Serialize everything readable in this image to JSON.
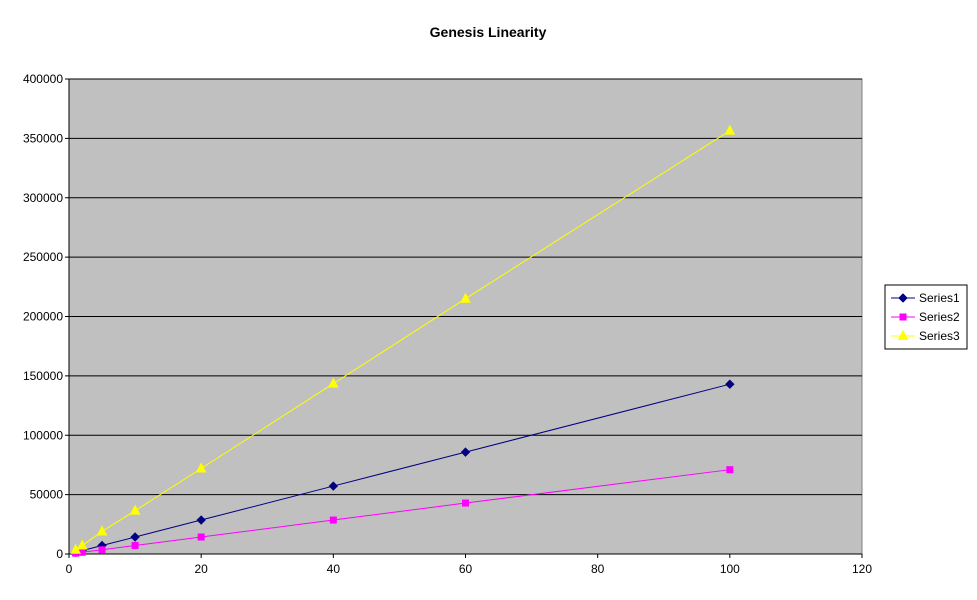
{
  "chart_data": {
    "type": "line",
    "title": "Genesis Linearity",
    "xlabel": "",
    "ylabel": "",
    "xlim": [
      0,
      120
    ],
    "ylim": [
      0,
      400000
    ],
    "x_ticks": [
      0,
      20,
      40,
      60,
      80,
      100,
      120
    ],
    "y_ticks": [
      0,
      50000,
      100000,
      150000,
      200000,
      250000,
      300000,
      350000,
      400000
    ],
    "grid": "horizontal",
    "legend": "right",
    "plot_background": "#c0c0c0",
    "series": [
      {
        "name": "Series1",
        "color": "#000080",
        "marker": "diamond",
        "x": [
          1,
          2,
          5,
          10,
          20,
          40,
          60,
          100
        ],
        "y": [
          1430,
          2860,
          7150,
          14300,
          28600,
          57200,
          85800,
          143000
        ]
      },
      {
        "name": "Series2",
        "color": "#ff00ff",
        "marker": "square",
        "x": [
          1,
          2,
          5,
          10,
          20,
          40,
          60,
          100
        ],
        "y": [
          715,
          1430,
          3575,
          7150,
          14300,
          28600,
          42900,
          71000
        ]
      },
      {
        "name": "Series3",
        "color": "#ffff00",
        "marker": "triangle",
        "x": [
          1,
          2,
          5,
          10,
          20,
          40,
          60,
          100
        ],
        "y": [
          3570,
          7140,
          19000,
          36500,
          72000,
          143500,
          215000,
          356500
        ]
      }
    ]
  }
}
